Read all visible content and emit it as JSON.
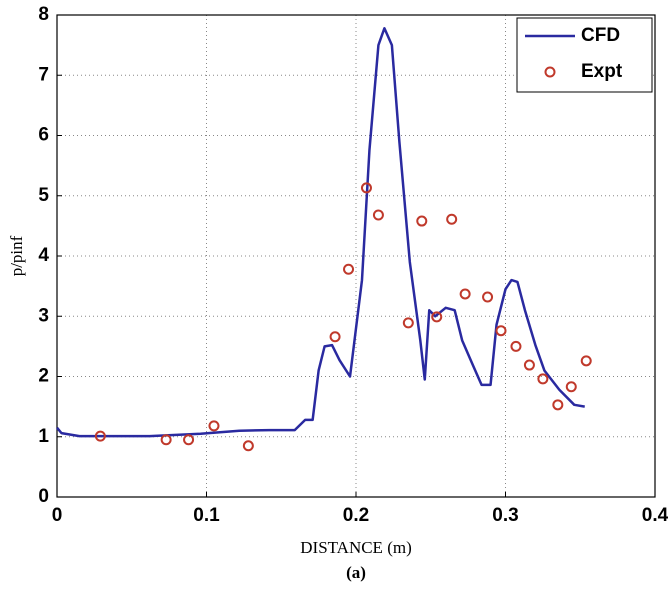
{
  "chart_data": {
    "type": "line",
    "x_label": "DISTANCE (m)",
    "y_label": "p/pinf",
    "caption": "(a)",
    "xlim": [
      0,
      0.4
    ],
    "xticks": [
      0,
      0.1,
      0.2,
      0.3,
      0.4
    ],
    "ylim": [
      0,
      8
    ],
    "yticks": [
      0,
      1,
      2,
      3,
      4,
      5,
      6,
      7,
      8
    ],
    "grid": true,
    "legend": "upper right",
    "series": [
      {
        "name": "CFD",
        "kind": "line",
        "color": "#2a2aa0",
        "x": [
          0,
          0.003,
          0.015,
          0.062,
          0.096,
          0.122,
          0.142,
          0.159,
          0.166,
          0.171,
          0.175,
          0.179,
          0.184,
          0.189,
          0.196,
          0.199,
          0.204,
          0.209,
          0.215,
          0.219,
          0.224,
          0.229,
          0.236,
          0.243,
          0.246,
          0.249,
          0.253,
          0.26,
          0.266,
          0.271,
          0.278,
          0.284,
          0.29,
          0.294,
          0.3,
          0.304,
          0.308,
          0.313,
          0.32,
          0.326,
          0.336,
          0.346,
          0.353
        ],
        "values": [
          1.15,
          1.06,
          1.01,
          1.01,
          1.05,
          1.1,
          1.11,
          1.11,
          1.28,
          1.28,
          2.1,
          2.5,
          2.52,
          2.27,
          2.0,
          2.6,
          3.6,
          5.76,
          7.5,
          7.78,
          7.5,
          5.9,
          3.9,
          2.6,
          1.95,
          3.1,
          3.0,
          3.14,
          3.1,
          2.6,
          2.2,
          1.86,
          1.86,
          2.86,
          3.45,
          3.6,
          3.57,
          3.1,
          2.52,
          2.1,
          1.78,
          1.53,
          1.5
        ]
      },
      {
        "name": "Expt",
        "kind": "marker",
        "color": "#c0392b",
        "x": [
          0.029,
          0.073,
          0.088,
          0.105,
          0.128,
          0.186,
          0.195,
          0.207,
          0.215,
          0.235,
          0.244,
          0.254,
          0.264,
          0.273,
          0.288,
          0.297,
          0.307,
          0.316,
          0.325,
          0.335,
          0.344,
          0.354
        ],
        "values": [
          1.01,
          0.95,
          0.95,
          1.18,
          0.85,
          2.66,
          3.78,
          5.13,
          4.68,
          2.89,
          4.58,
          2.99,
          4.61,
          3.37,
          3.32,
          2.76,
          2.5,
          2.19,
          1.96,
          1.53,
          1.83,
          2.26
        ]
      }
    ]
  }
}
